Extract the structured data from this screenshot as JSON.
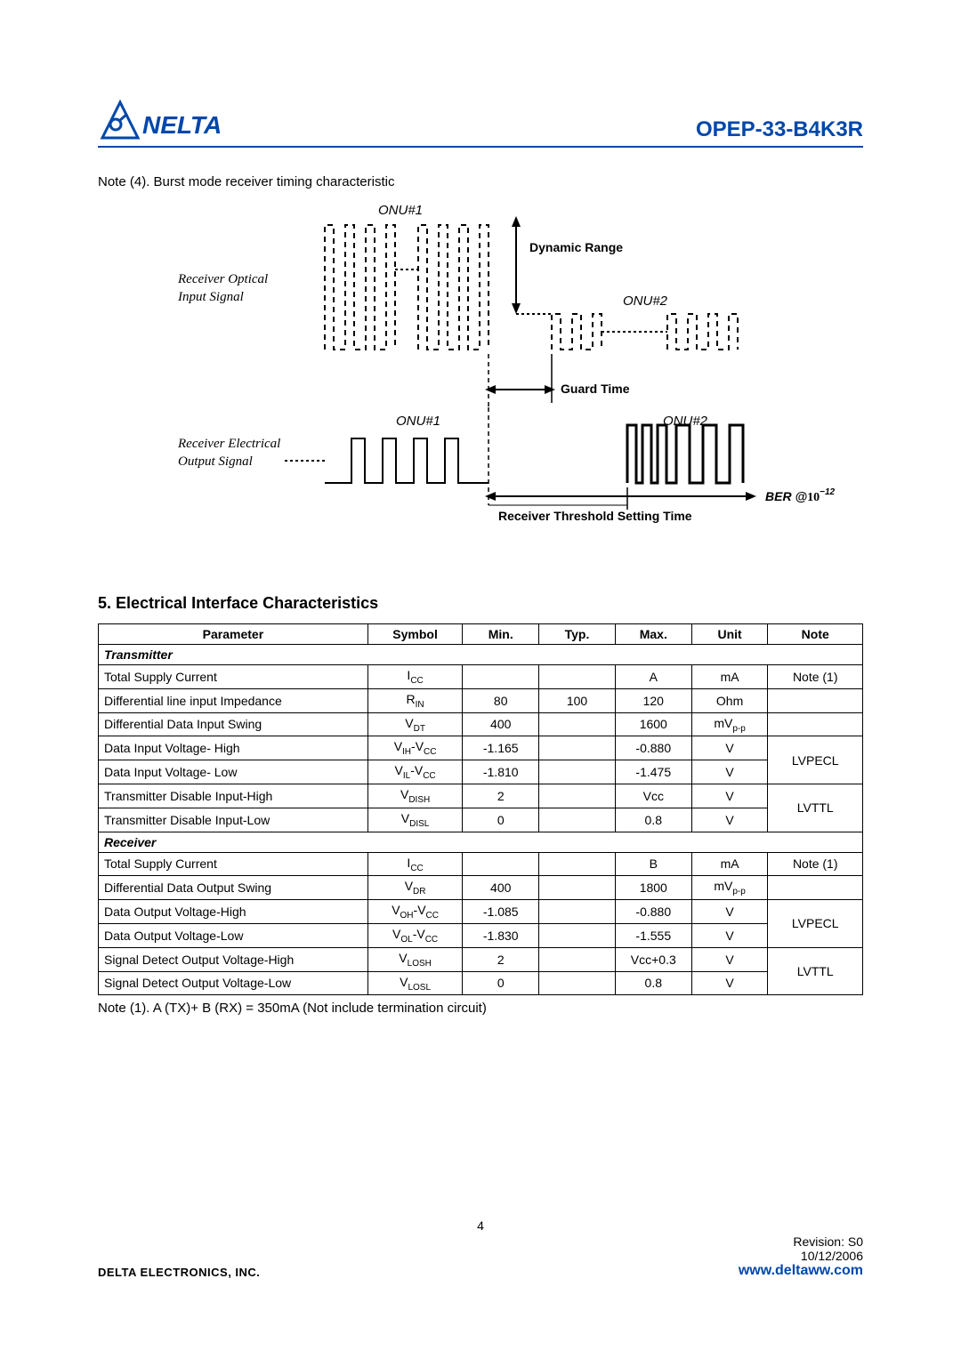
{
  "header": {
    "logo_text": "NELTA",
    "part_number": "OPEP-33-B4K3R",
    "logo_color": "#0047ab",
    "underline_color": "#0047ab"
  },
  "note4": "Note (4). Burst mode receiver timing characteristic",
  "diagram": {
    "labels": {
      "onu1": "ONU#1",
      "onu2": "ONU#2",
      "dynamic_range": "Dynamic Range",
      "rx_optical_in": "Receiver Optical",
      "rx_optical_in2": "Input Signal",
      "guard_time": "Guard Time",
      "rx_elec_out": "Receiver Electrical",
      "rx_elec_out2": "Output Signal",
      "ber": "BER @",
      "ber_exp": "10",
      "ber_sup": "−12",
      "thresh_time": "Receiver Threshold Setting Time"
    },
    "colors": {
      "stroke": "#000000",
      "text": "#000000"
    },
    "fontsize_label": 14,
    "fontsize_italic": 15
  },
  "section5": {
    "title": "5. Electrical Interface Characteristics",
    "columns": [
      "Parameter",
      "Symbol",
      "Min.",
      "Typ.",
      "Max.",
      "Unit",
      "Note"
    ],
    "sections": [
      {
        "header": "Transmitter",
        "rows": [
          {
            "param": "Total Supply Current",
            "sym": "I",
            "sub": "CC",
            "min": "",
            "typ": "",
            "max": "A",
            "unit": "mA",
            "note": "Note (1)",
            "rowspan": 1
          },
          {
            "param": "Differential line input Impedance",
            "sym": "R",
            "sub": "IN",
            "min": "80",
            "typ": "100",
            "max": "120",
            "unit": "Ohm",
            "note": "",
            "rowspan": 1
          },
          {
            "param": "Differential Data Input Swing",
            "sym": "V",
            "sub": "DT",
            "min": "400",
            "typ": "",
            "max": "1600",
            "unit": "mV",
            "unitsub": "p-p",
            "note": "",
            "rowspan": 1
          },
          {
            "param": "Data Input Voltage- High",
            "sym": "V",
            "sub": "IH",
            "sym2": "-V",
            "sub2": "CC",
            "min": "-1.165",
            "typ": "",
            "max": "-0.880",
            "unit": "V",
            "note": "LVPECL",
            "noterows": 2
          },
          {
            "param": "Data Input Voltage- Low",
            "sym": "V",
            "sub": "IL",
            "sym2": "-V",
            "sub2": "CC",
            "min": "-1.810",
            "typ": "",
            "max": "-1.475",
            "unit": "V"
          },
          {
            "param": "Transmitter Disable Input-High",
            "sym": "V",
            "sub": "DISH",
            "min": "2",
            "typ": "",
            "max": "Vcc",
            "unit": "V",
            "note": "LVTTL",
            "noterows": 2
          },
          {
            "param": "Transmitter Disable Input-Low",
            "sym": "V",
            "sub": "DISL",
            "min": "0",
            "typ": "",
            "max": "0.8",
            "unit": "V"
          }
        ]
      },
      {
        "header": "Receiver",
        "rows": [
          {
            "param": "Total Supply Current",
            "sym": "I",
            "sub": "CC",
            "min": "",
            "typ": "",
            "max": "B",
            "unit": "mA",
            "note": "Note (1)",
            "rowspan": 1
          },
          {
            "param": "Differential Data Output Swing",
            "sym": "V",
            "sub": "DR",
            "min": "400",
            "typ": "",
            "max": "1800",
            "unit": "mV",
            "unitsub": "p-p",
            "note": "",
            "rowspan": 1
          },
          {
            "param": "Data Output Voltage-High",
            "sym": "V",
            "sub": "OH",
            "sym2": "-V",
            "sub2": "CC",
            "min": "-1.085",
            "typ": "",
            "max": "-0.880",
            "unit": "V",
            "note": "LVPECL",
            "noterows": 2
          },
          {
            "param": "Data Output Voltage-Low",
            "sym": "V",
            "sub": "OL",
            "sym2": "-V",
            "sub2": "CC",
            "min": "-1.830",
            "typ": "",
            "max": "-1.555",
            "unit": "V"
          },
          {
            "param": "Signal Detect Output Voltage-High",
            "sym": "V",
            "sub": "LOSH",
            "min": "2",
            "typ": "",
            "max": "Vcc+0.3",
            "unit": "V",
            "note": "LVTTL",
            "noterows": 2
          },
          {
            "param": "Signal Detect Output Voltage-Low",
            "sym": "V",
            "sub": "LOSL",
            "min": "0",
            "typ": "",
            "max": "0.8",
            "unit": "V"
          }
        ]
      }
    ],
    "table_note": "Note (1). A (TX)+ B (RX) = 350mA    (Not include termination circuit)"
  },
  "footer": {
    "page": "4",
    "company": "DELTA ELECTRONICS, INC.",
    "revision": "Revision:  S0",
    "date": "10/12/2006",
    "url": "www.deltaww.com",
    "url_color": "#0047ab"
  }
}
